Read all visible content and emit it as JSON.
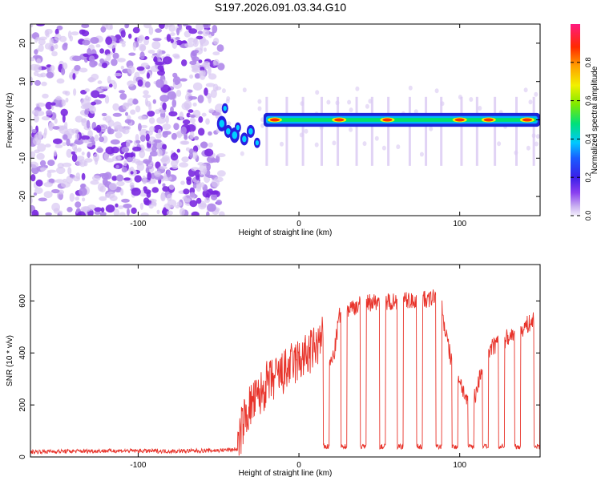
{
  "title": "S197.2026.091.03.34.G10",
  "colors": {
    "snr_line": "#e8332a",
    "axis": "#000000",
    "background": "#ffffff",
    "noise_light": "#d9c8f2",
    "noise_dark": "#7a28e0"
  },
  "chart_data": [
    {
      "type": "heatmap",
      "title": "S197.2026.091.03.34.G10",
      "xlabel": "Height of straight line (km)",
      "ylabel": "Frequency (Hz)",
      "xlim": [
        -167,
        150
      ],
      "ylim": [
        -25,
        25
      ],
      "xticks": [
        -100,
        0,
        100
      ],
      "yticks": [
        -20,
        -10,
        0,
        10,
        20
      ],
      "colorbar": {
        "label": "Normalized spectral amplitude",
        "range": [
          0,
          1
        ],
        "ticks": [
          0.0,
          0.2,
          0.4,
          0.6,
          0.8
        ],
        "colormap": "rainbow (purple to magenta)"
      },
      "regions": {
        "noise_x": [
          -167,
          -48
        ],
        "tone_x": [
          -50,
          150
        ],
        "tone_freq_hz": 0,
        "tone_peak_x_km": [
          -15,
          25,
          55,
          100,
          118,
          142
        ]
      }
    },
    {
      "type": "line",
      "title": "",
      "xlabel": "Height of straight line (km)",
      "ylabel": "SNR (10 * v/v)",
      "xlim": [
        -167,
        150
      ],
      "ylim": [
        0,
        740
      ],
      "xticks": [
        -100,
        0,
        100
      ],
      "yticks": [
        0,
        200,
        400,
        600
      ],
      "series": [
        {
          "name": "SNR",
          "x": [
            -167,
            -140,
            -110,
            -80,
            -50,
            -38,
            -35,
            -30,
            -25,
            -20,
            -15,
            -10,
            -5,
            0,
            5,
            10,
            15,
            18,
            20,
            22,
            25,
            30,
            35,
            40,
            45,
            50,
            55,
            60,
            65,
            70,
            75,
            80,
            85,
            88,
            90,
            95,
            100,
            105,
            110,
            115,
            120,
            125,
            130,
            135,
            140,
            145,
            150
          ],
          "y": [
            20,
            22,
            24,
            22,
            25,
            30,
            130,
            200,
            230,
            280,
            300,
            320,
            350,
            370,
            390,
            420,
            460,
            380,
            360,
            400,
            540,
            570,
            580,
            590,
            595,
            600,
            600,
            600,
            605,
            600,
            610,
            600,
            620,
            640,
            520,
            360,
            300,
            200,
            240,
            380,
            420,
            440,
            460,
            480,
            500,
            520,
            560
          ]
        }
      ],
      "dropouts_x_km": [
        17,
        28,
        40,
        52,
        63,
        75,
        87,
        97,
        107,
        116,
        126,
        136,
        148
      ],
      "dropout_level": 40
    }
  ]
}
